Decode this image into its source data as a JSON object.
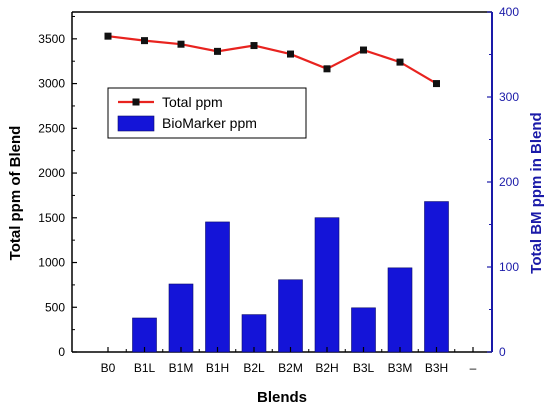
{
  "chart_data": {
    "type": "bar+line",
    "categories": [
      "B0",
      "B1L",
      "B1M",
      "B1H",
      "B2L",
      "B2M",
      "B2H",
      "B3L",
      "B3M",
      "B3H"
    ],
    "extra_x_tick": "–",
    "xlabel": "Blends",
    "ylabel_left": "Total ppm of Blend",
    "ylabel_right": "Total BM ppm in Blend",
    "ylim_left": [
      0,
      3800
    ],
    "ylim_right": [
      0,
      400
    ],
    "yticks_left": [
      0,
      500,
      1000,
      1500,
      2000,
      2500,
      3000,
      3500
    ],
    "yticks_right": [
      0,
      100,
      200,
      300,
      400
    ],
    "grid": false,
    "legend_position": "upper-left",
    "colors": {
      "line": "#e8231f",
      "marker": "#111111",
      "bars": "#1414d8",
      "right_axis": "#1a1aa8"
    },
    "series": [
      {
        "name": "Total ppm",
        "kind": "line",
        "axis": "left",
        "values": [
          3530,
          3480,
          3440,
          3360,
          3425,
          3330,
          3165,
          3375,
          3240,
          3000
        ]
      },
      {
        "name": "BioMarker ppm",
        "kind": "bar",
        "axis": "right",
        "values": [
          0,
          40,
          80,
          153,
          44,
          85,
          158,
          52,
          99,
          177
        ]
      }
    ]
  }
}
